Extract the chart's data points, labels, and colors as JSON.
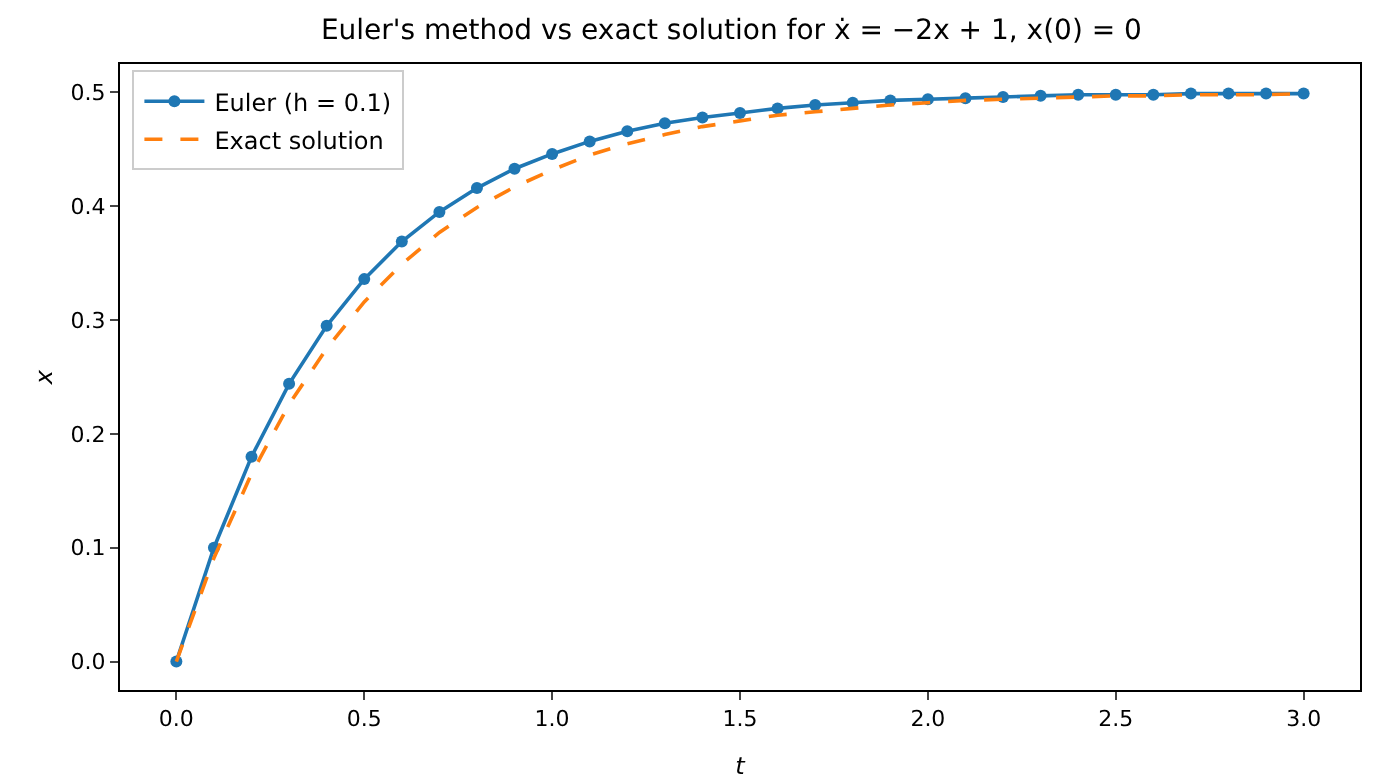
{
  "chart_data": {
    "type": "line",
    "title": "Euler's method vs exact solution for ẋ = −2x + 1, x(0) = 0",
    "xlabel": "t",
    "ylabel": "x",
    "x": [
      0,
      0.1,
      0.2,
      0.3,
      0.4,
      0.5,
      0.6,
      0.7,
      0.8,
      0.9,
      1,
      1.1,
      1.2,
      1.3,
      1.4,
      1.5,
      1.6,
      1.7,
      1.8,
      1.9,
      2,
      2.1,
      2.2,
      2.3,
      2.4,
      2.5,
      2.6,
      2.7,
      2.8,
      2.9,
      3
    ],
    "series": [
      {
        "name": "Euler (h = 0.1)",
        "color": "#1f77b4",
        "marker": "circle",
        "line_style": "solid",
        "values": [
          0,
          0.1,
          0.18,
          0.244,
          0.295,
          0.336,
          0.369,
          0.395,
          0.416,
          0.433,
          0.446,
          0.457,
          0.466,
          0.473,
          0.478,
          0.482,
          0.486,
          0.489,
          0.491,
          0.493,
          0.494,
          0.495,
          0.496,
          0.497,
          0.498,
          0.498,
          0.498,
          0.499,
          0.499,
          0.499,
          0.499
        ]
      },
      {
        "name": "Exact solution",
        "color": "#ff7f0e",
        "marker": "none",
        "line_style": "dashed",
        "values": [
          0,
          0.091,
          0.165,
          0.226,
          0.275,
          0.316,
          0.349,
          0.377,
          0.399,
          0.417,
          0.432,
          0.445,
          0.455,
          0.463,
          0.47,
          0.475,
          0.48,
          0.483,
          0.486,
          0.489,
          0.491,
          0.493,
          0.494,
          0.495,
          0.496,
          0.497,
          0.497,
          0.498,
          0.498,
          0.498,
          0.499
        ]
      }
    ],
    "xlim": [
      -0.15,
      3.15
    ],
    "xticks": [
      {
        "value": 0,
        "label": "0.0"
      },
      0.5,
      {
        "value": 1,
        "label": "1.0"
      },
      1.5,
      {
        "value": 2,
        "label": "2.0"
      },
      2.5,
      {
        "value": 3,
        "label": "3.0"
      }
    ],
    "ylim": [
      -0.025,
      0.525
    ],
    "yticks": [
      {
        "value": 0,
        "label": "0.0"
      },
      0.1,
      0.2,
      0.3,
      0.4,
      0.5
    ],
    "grid": false,
    "legend": "top left"
  }
}
